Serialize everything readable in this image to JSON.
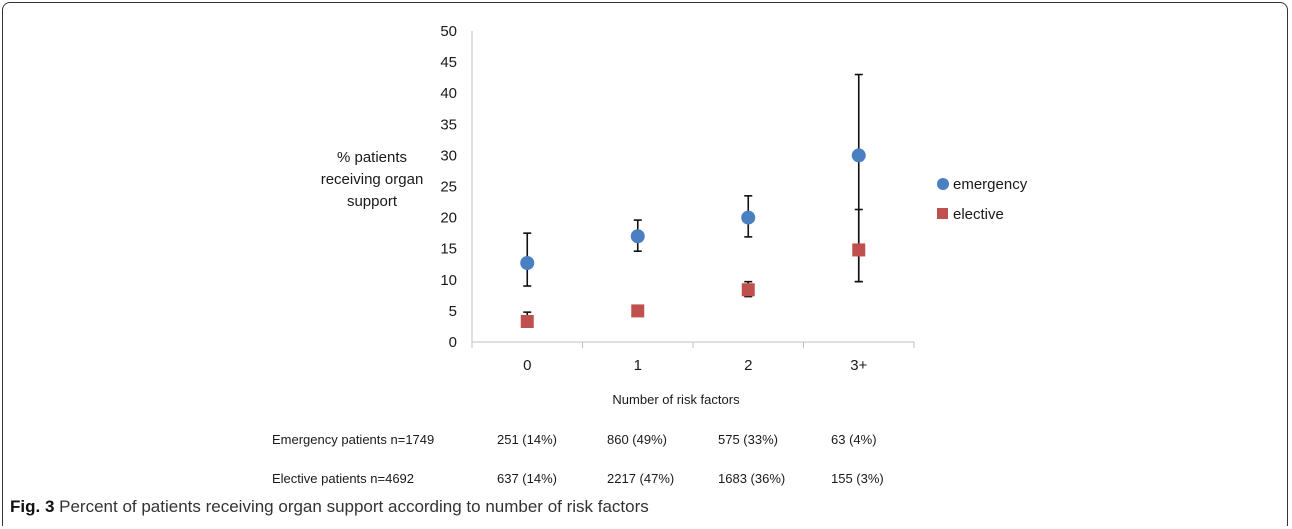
{
  "chart_data": {
    "type": "scatter",
    "categories": [
      "0",
      "1",
      "2",
      "3+"
    ],
    "ylim": [
      0,
      50
    ],
    "yticks": [
      "0",
      "5",
      "10",
      "15",
      "20",
      "25",
      "30",
      "35",
      "40",
      "45",
      "50"
    ],
    "ylabel_lines": [
      "% patients",
      "receiving organ",
      "support"
    ],
    "xlabel": "Number of risk factors",
    "legend_position": "right",
    "series": [
      {
        "name": "emergency",
        "color": "#4a7fc1",
        "marker": "circle",
        "values": [
          12.7,
          17.0,
          20.0,
          30.0
        ],
        "err_low": [
          9.0,
          14.6,
          16.9,
          9.7
        ],
        "err_high": [
          17.5,
          19.6,
          23.5,
          43.0
        ]
      },
      {
        "name": "elective",
        "color": "#c0504d",
        "marker": "square",
        "values": [
          3.3,
          5.0,
          8.4,
          14.8
        ],
        "err_low": [
          2.4,
          4.6,
          7.3,
          9.7
        ],
        "err_high": [
          4.8,
          5.5,
          9.7,
          21.3
        ]
      }
    ]
  },
  "table": {
    "rows": [
      {
        "label": "Emergency patients  n=1749",
        "cells": [
          "251 (14%)",
          "860 (49%)",
          "575 (33%)",
          "63 (4%)"
        ]
      },
      {
        "label": "Elective patients n=4692",
        "cells": [
          "637 (14%)",
          "2217 (47%)",
          "1683 (36%)",
          "155 (3%)"
        ]
      }
    ]
  },
  "caption": {
    "label": "Fig. 3",
    "text": " Percent of patients receiving organ support according to number of risk factors"
  }
}
